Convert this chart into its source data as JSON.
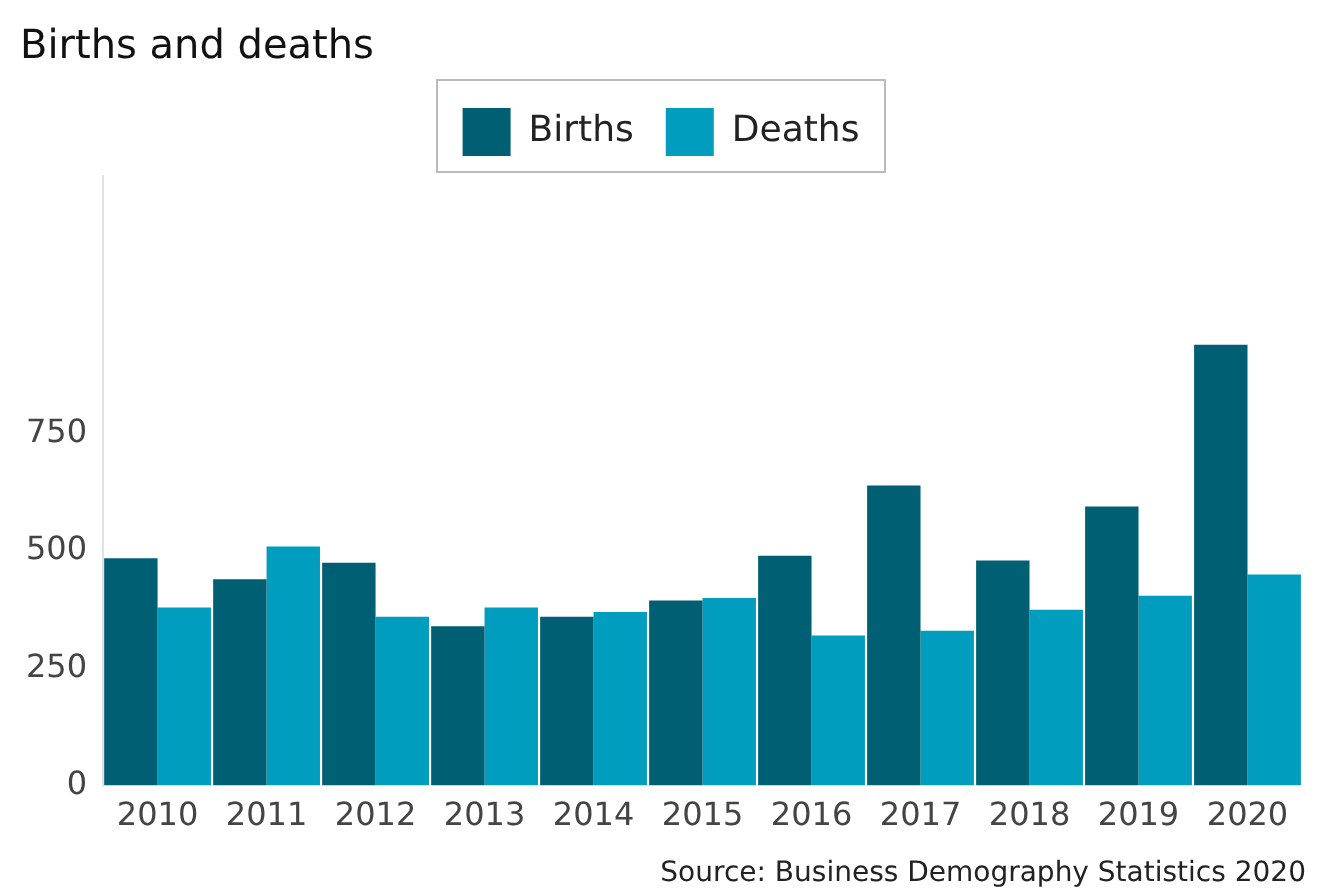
{
  "chart_data": {
    "type": "bar",
    "title": "Births and deaths",
    "categories": [
      "2010",
      "2011",
      "2012",
      "2013",
      "2014",
      "2015",
      "2016",
      "2017",
      "2018",
      "2019",
      "2020"
    ],
    "series": [
      {
        "name": "Births",
        "color": "#005f73",
        "values": [
          485,
          440,
          475,
          340,
          360,
          395,
          490,
          640,
          480,
          595,
          940
        ]
      },
      {
        "name": "Deaths",
        "color": "#009dbf",
        "values": [
          380,
          510,
          360,
          380,
          370,
          400,
          320,
          330,
          375,
          405,
          450
        ]
      }
    ],
    "ylim": [
      0,
      1300
    ],
    "yticks": [
      0,
      250,
      500,
      750
    ],
    "grid": false,
    "legend": "top",
    "annotations": [
      "Source: Business Demography Statistics 2020"
    ]
  }
}
